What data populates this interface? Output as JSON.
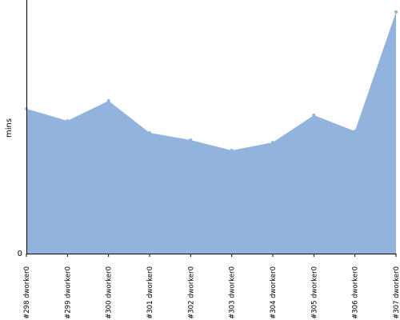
{
  "chart_data": {
    "type": "area",
    "title": "",
    "xlabel": "",
    "ylabel": "mins",
    "categories": [
      "#298 dworker0",
      "#299 dworker0",
      "#300 dworker0",
      "#301 dworker0",
      "#302 dworker0",
      "#303 dworker0",
      "#304 dworker0",
      "#305 dworker0",
      "#306 dworker0",
      "#307 dworker0"
    ],
    "series": [
      {
        "values": [
          18.1,
          16.6,
          19.1,
          15.1,
          14.2,
          12.9,
          13.9,
          17.3,
          15.3,
          30.2
        ]
      }
    ],
    "yticks": [
      {
        "value": 0,
        "label": "0"
      }
    ],
    "ylim": [
      0,
      31.7
    ],
    "grid": false,
    "legend": "none",
    "colors": {
      "fill": "#91b3dc",
      "axis": "#000000"
    }
  }
}
